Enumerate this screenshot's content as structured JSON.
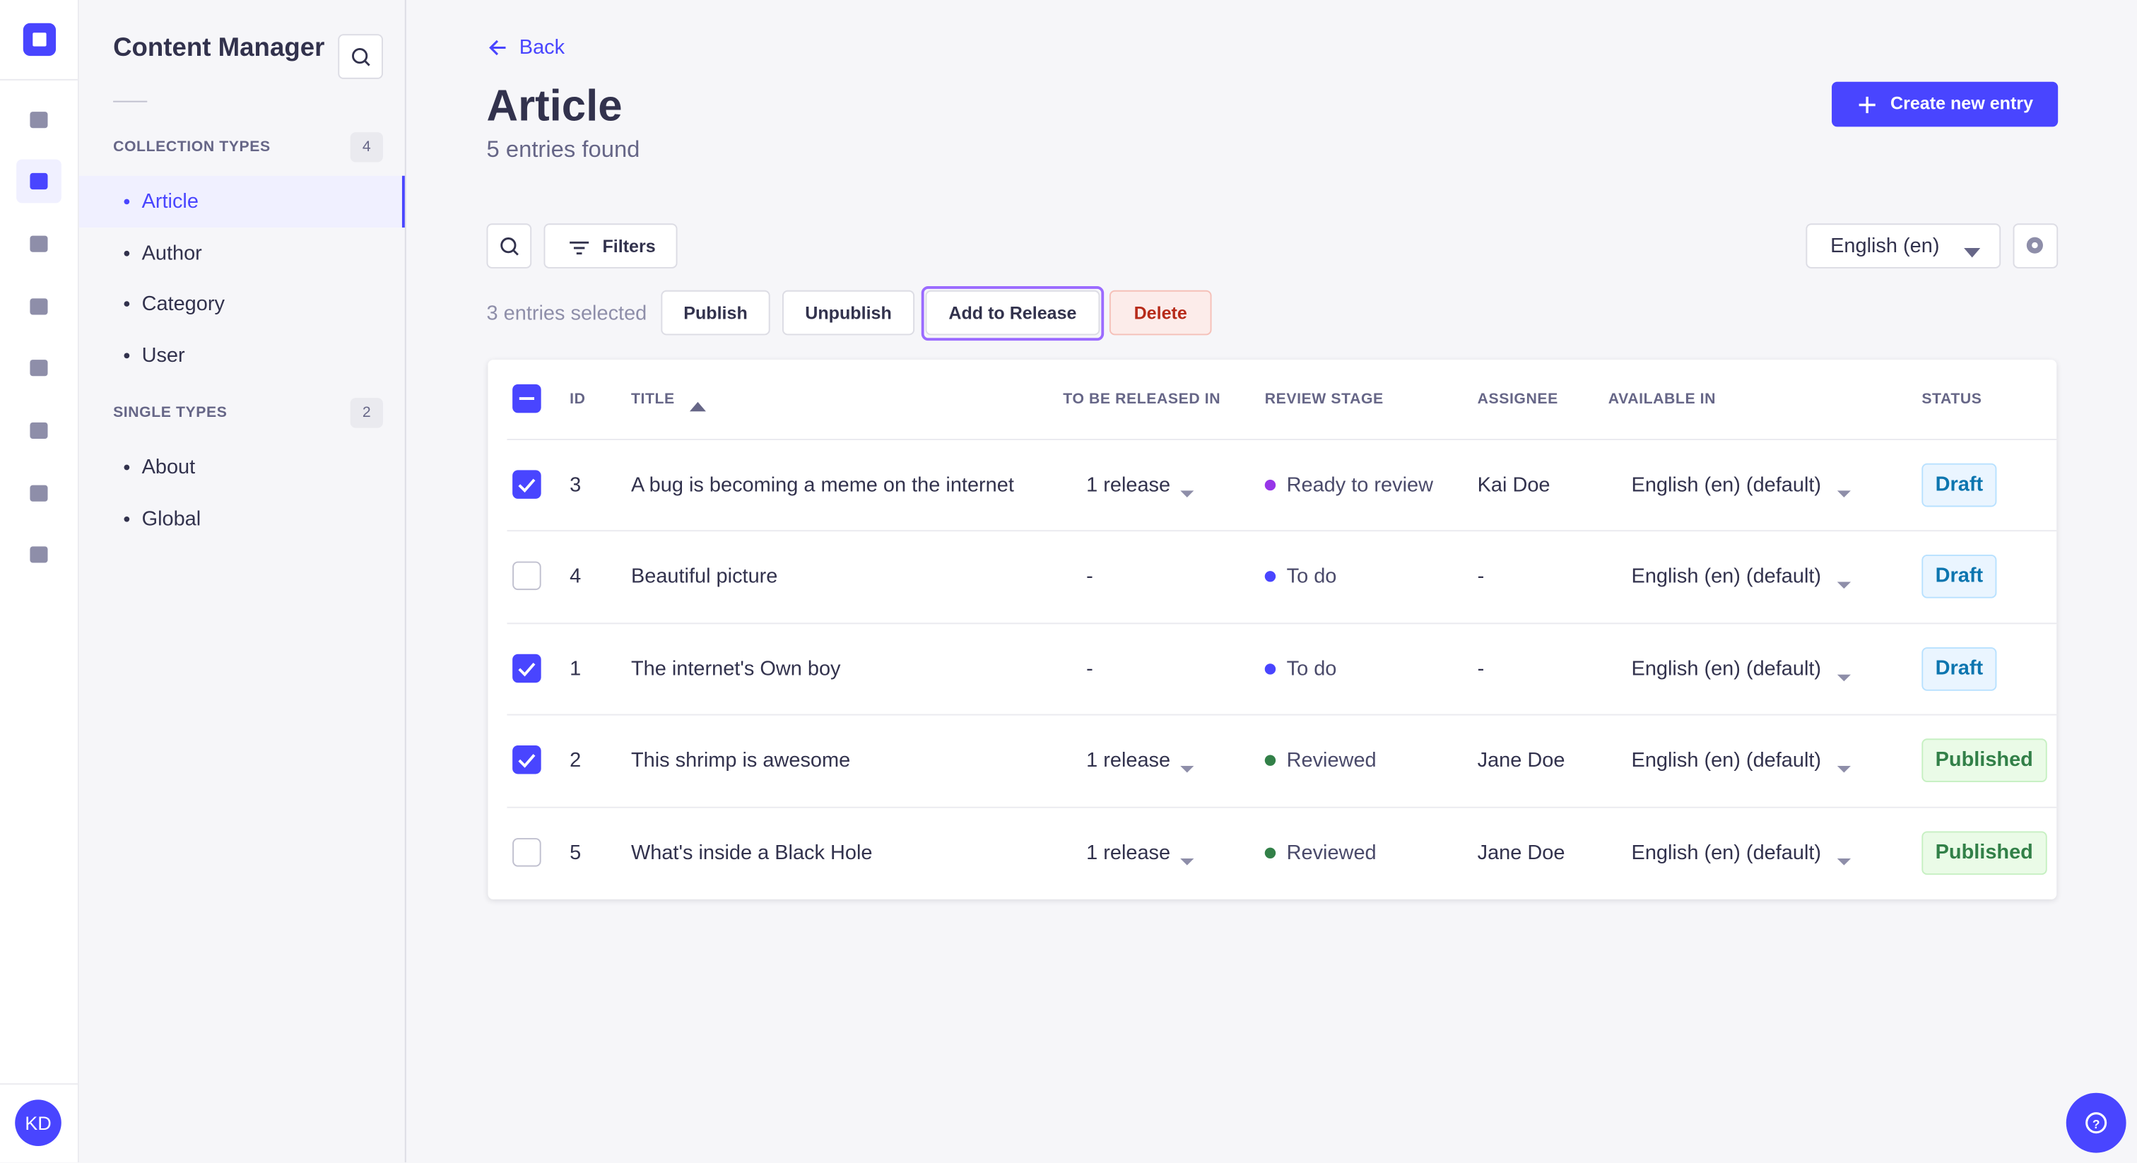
{
  "sidebar": {
    "title": "Content Manager",
    "collection_types": {
      "label": "COLLECTION TYPES",
      "count": 4,
      "items": [
        "Article",
        "Author",
        "Category",
        "User"
      ],
      "active": 0
    },
    "single_types": {
      "label": "SINGLE TYPES",
      "count": 2,
      "items": [
        "About",
        "Global"
      ]
    }
  },
  "user": {
    "initials": "KD"
  },
  "header": {
    "back": "Back",
    "title": "Article",
    "subtitle": "5 entries found",
    "create": "Create new entry"
  },
  "toolbar": {
    "filters": "Filters",
    "locale": "English (en)"
  },
  "bulk": {
    "selected": "3 entries selected",
    "actions": [
      "Publish",
      "Unpublish",
      "Add to Release",
      "Delete"
    ]
  },
  "table": {
    "columns": [
      "ID",
      "TITLE",
      "TO BE RELEASED IN",
      "REVIEW STAGE",
      "ASSIGNEE",
      "AVAILABLE IN",
      "STATUS"
    ],
    "rows": [
      {
        "checked": true,
        "id": 3,
        "title": "A bug is becoming a meme on the internet",
        "release": "1 release",
        "stage": "Ready to review",
        "stage_color": "#9736e8",
        "assignee": "Kai Doe",
        "available": "English (en) (default)",
        "status": "Draft",
        "status_color": "#0c75af",
        "status_bg": "#eaf5ff",
        "status_border": "#b8e1ff"
      },
      {
        "checked": false,
        "id": 4,
        "title": "Beautiful picture",
        "release": "-",
        "stage": "To do",
        "stage_color": "#4945ff",
        "assignee": "-",
        "available": "English (en) (default)",
        "status": "Draft",
        "status_color": "#0c75af",
        "status_bg": "#eaf5ff",
        "status_border": "#b8e1ff"
      },
      {
        "checked": true,
        "id": 1,
        "title": "The internet's Own boy",
        "release": "-",
        "stage": "To do",
        "stage_color": "#4945ff",
        "assignee": "-",
        "available": "English (en) (default)",
        "status": "Draft",
        "status_color": "#0c75af",
        "status_bg": "#eaf5ff",
        "status_border": "#b8e1ff"
      },
      {
        "checked": true,
        "id": 2,
        "title": "This shrimp is awesome",
        "release": "1 release",
        "stage": "Reviewed",
        "stage_color": "#328048",
        "assignee": "Jane Doe",
        "available": "English (en) (default)",
        "status": "Published",
        "status_color": "#328048",
        "status_bg": "#eafbe7",
        "status_border": "#c6f0c2"
      },
      {
        "checked": false,
        "id": 5,
        "title": "What's inside a Black Hole",
        "release": "1 release",
        "stage": "Reviewed",
        "stage_color": "#328048",
        "assignee": "Jane Doe",
        "available": "English (en) (default)",
        "status": "Published",
        "status_color": "#328048",
        "status_bg": "#eafbe7",
        "status_border": "#c6f0c2"
      }
    ]
  }
}
